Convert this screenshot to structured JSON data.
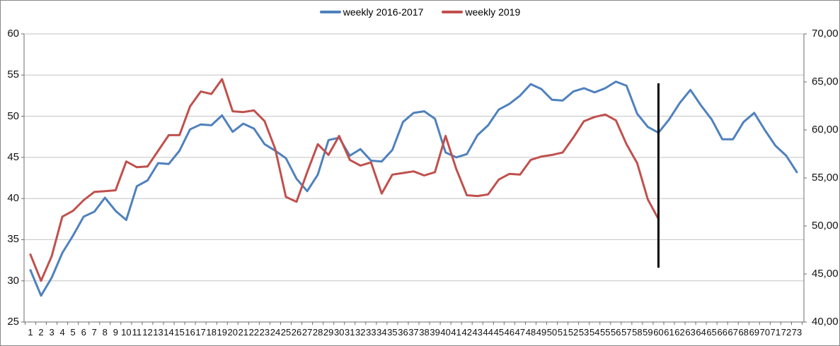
{
  "chart_data": {
    "type": "line",
    "title": "",
    "xlabel": "",
    "ylabel": "",
    "gridlines": true,
    "legend_position": "top-center",
    "x_categories": [
      1,
      2,
      3,
      4,
      5,
      6,
      7,
      8,
      9,
      10,
      11,
      12,
      13,
      14,
      15,
      16,
      17,
      18,
      19,
      20,
      21,
      22,
      23,
      24,
      25,
      26,
      27,
      28,
      29,
      30,
      31,
      32,
      33,
      34,
      35,
      36,
      37,
      38,
      39,
      40,
      41,
      42,
      43,
      44,
      45,
      46,
      47,
      48,
      49,
      50,
      51,
      52,
      53,
      54,
      55,
      56,
      57,
      58,
      59,
      60,
      61,
      62,
      63,
      64,
      65,
      66,
      67,
      68,
      69,
      70,
      71,
      72,
      73
    ],
    "y_axis_left": {
      "min": 25,
      "max": 60,
      "step": 5,
      "tick_labels": [
        "60",
        "55",
        "50",
        "45",
        "40",
        "35",
        "30",
        "25"
      ]
    },
    "y_axis_right": {
      "min": 40,
      "max": 70,
      "step": 5,
      "tick_labels": [
        "70,00",
        "65,00",
        "60,00",
        "55,00",
        "50,00",
        "45,00",
        "40,00"
      ]
    },
    "series": [
      {
        "name": "weekly 2016-2017",
        "color": "#4F81BD",
        "values": [
          31.3,
          28.2,
          30.4,
          33.4,
          35.5,
          37.8,
          38.4,
          40.1,
          38.5,
          37.4,
          41.5,
          42.2,
          44.3,
          44.2,
          45.8,
          48.4,
          49.0,
          48.9,
          50.1,
          48.1,
          49.1,
          48.5,
          46.6,
          45.8,
          44.9,
          42.4,
          40.9,
          42.9,
          47.1,
          47.4,
          45.2,
          46.0,
          44.6,
          44.5,
          45.9,
          49.3,
          50.4,
          50.6,
          49.7,
          45.6,
          45.0,
          45.4,
          47.7,
          48.9,
          50.8,
          51.5,
          52.5,
          53.9,
          53.3,
          52.0,
          51.9,
          53.0,
          53.4,
          52.9,
          53.4,
          54.2,
          53.7,
          50.3,
          48.7,
          48.0,
          49.6,
          51.6,
          53.2,
          51.3,
          49.6,
          47.2,
          47.2,
          49.3,
          50.4,
          48.3,
          46.4,
          45.2,
          43.2
        ]
      },
      {
        "name": "weekly 2019",
        "color": "#C0504D",
        "values": [
          33.2,
          30.0,
          33.0,
          37.8,
          38.5,
          39.8,
          40.8,
          40.9,
          41.0,
          44.5,
          43.8,
          43.9,
          45.8,
          47.7,
          47.7,
          51.2,
          53.0,
          52.7,
          54.5,
          50.6,
          50.5,
          50.7,
          49.4,
          46.0,
          40.2,
          39.6,
          43.2,
          46.6,
          45.3,
          47.6,
          44.7,
          44.0,
          44.4,
          40.6,
          42.9,
          43.1,
          43.3,
          42.8,
          43.2,
          47.6,
          43.6,
          40.4,
          40.3,
          40.5,
          42.3,
          43.0,
          42.9,
          44.7,
          45.1,
          45.3,
          45.6,
          47.4,
          49.4,
          49.9,
          50.2,
          49.5,
          46.6,
          44.3,
          39.9,
          37.5
        ]
      }
    ],
    "annotations": [
      {
        "type": "vertical-line",
        "x": 60,
        "y_from": 31.6,
        "y_to": 54.0,
        "color": "#000000",
        "width": 3
      }
    ]
  },
  "legend": {
    "items": [
      {
        "label": "weekly 2016-2017",
        "color": "#4F81BD"
      },
      {
        "label": "weekly 2019",
        "color": "#C0504D"
      }
    ]
  },
  "colors": {
    "gridline": "#C3C3C3",
    "axis_line": "#6E6E6E",
    "background": "#FFFFFF",
    "border": "#898989",
    "marker_line": "#000000"
  }
}
